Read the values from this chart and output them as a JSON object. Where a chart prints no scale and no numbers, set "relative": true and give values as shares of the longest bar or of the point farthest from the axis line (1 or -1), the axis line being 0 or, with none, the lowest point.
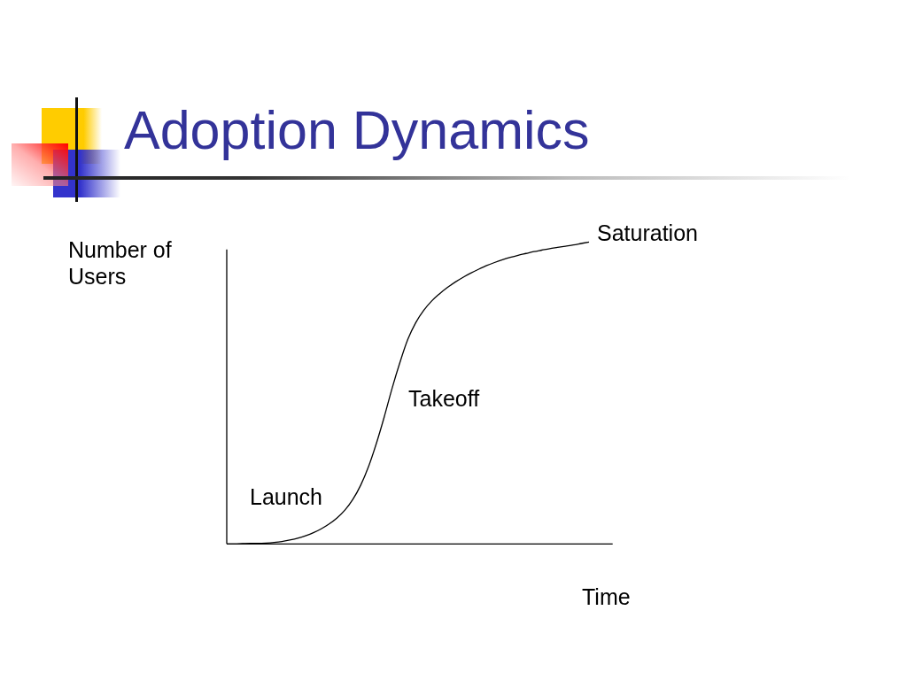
{
  "chart_data": {
    "type": "line",
    "title": "Adoption Dynamics",
    "xlabel": "Time",
    "ylabel": "Number of Users",
    "relative": true,
    "marker": "none",
    "color": "#000000",
    "categories": [
      null,
      null,
      null,
      null,
      null,
      null,
      null,
      null,
      null,
      null,
      null,
      null,
      null,
      null,
      null,
      null,
      null,
      null,
      null,
      null,
      null,
      null,
      null,
      null,
      null,
      null,
      null,
      null,
      null,
      null,
      null,
      null,
      null,
      null,
      null,
      null,
      null,
      null,
      null,
      null,
      null,
      null,
      null,
      null,
      null,
      null,
      null,
      null,
      null,
      null
    ],
    "values": [
      0,
      0,
      0.001,
      0.002,
      0.002,
      0.003,
      0.005,
      0.008,
      0.013,
      0.019,
      0.027,
      0.037,
      0.05,
      0.066,
      0.086,
      0.112,
      0.147,
      0.194,
      0.256,
      0.333,
      0.421,
      0.516,
      0.602,
      0.678,
      0.733,
      0.773,
      0.804,
      0.828,
      0.849,
      0.867,
      0.883,
      0.897,
      0.91,
      0.922,
      0.932,
      0.941,
      0.949,
      0.956,
      0.962,
      0.968,
      0.973,
      0.978,
      0.982,
      0.986,
      0.99,
      0.995,
      1,
      null,
      null,
      null
    ],
    "annotations": [
      "Saturation",
      "Takeoff",
      "Launch"
    ]
  }
}
